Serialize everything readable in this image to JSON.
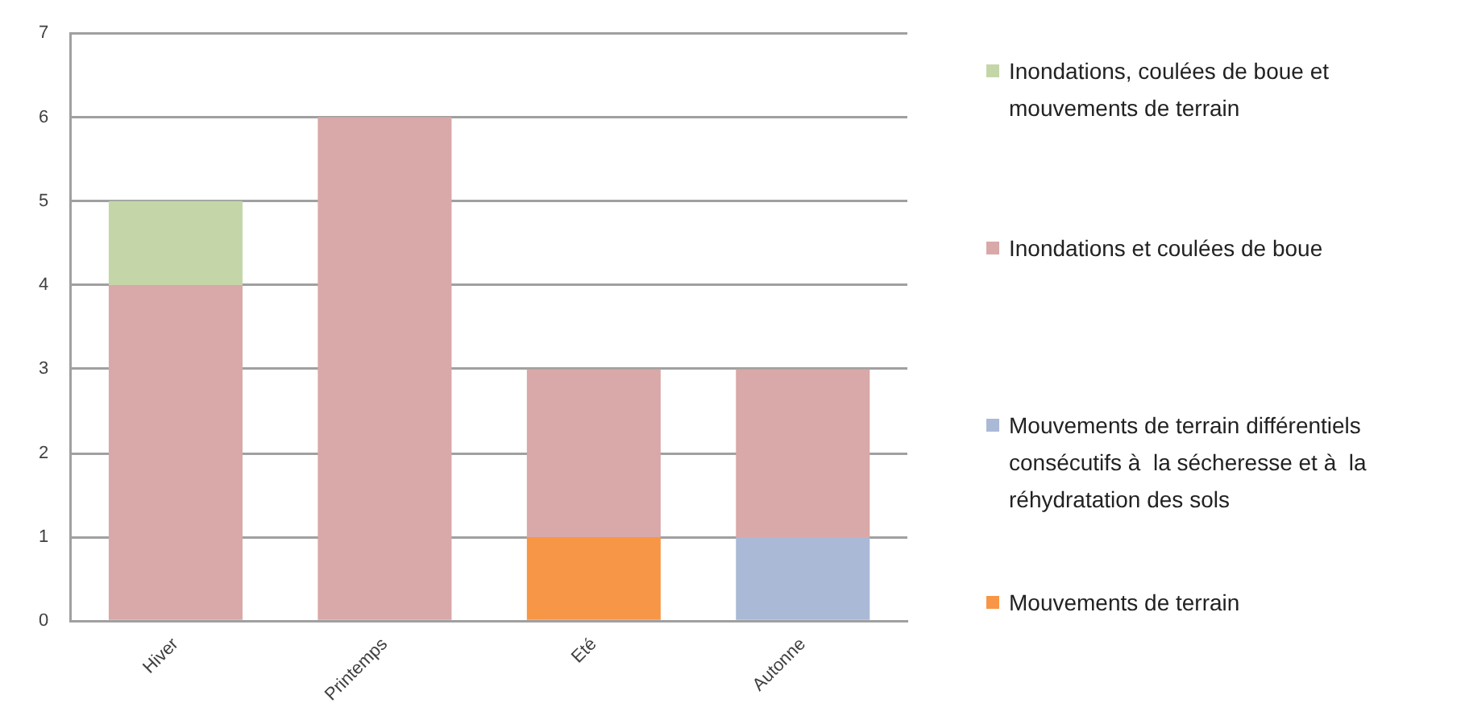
{
  "chart_data": {
    "type": "bar",
    "stacked": true,
    "categories": [
      "Hiver",
      "Printemps",
      "Eté",
      "Autonne"
    ],
    "series": [
      {
        "name": "Mouvements de terrain",
        "color": "#f79646",
        "values": [
          0,
          0,
          1,
          0
        ]
      },
      {
        "name": "Mouvements de terrain différentiels consécutifs à  la sécheresse et à  la réhydratation des sols",
        "color": "#aab9d6",
        "values": [
          0,
          0,
          0,
          1
        ]
      },
      {
        "name": "Inondations et coulées de boue",
        "color": "#d9a8a8",
        "values": [
          4,
          6,
          2,
          2
        ]
      },
      {
        "name": "Inondations, coulées de boue et mouvements de terrain",
        "color": "#c4d6a8",
        "values": [
          1,
          0,
          0,
          0
        ]
      }
    ],
    "ylim": [
      0,
      7
    ],
    "yticks": [
      0,
      1,
      2,
      3,
      4,
      5,
      6,
      7
    ],
    "grid": "y",
    "legend": "right"
  }
}
